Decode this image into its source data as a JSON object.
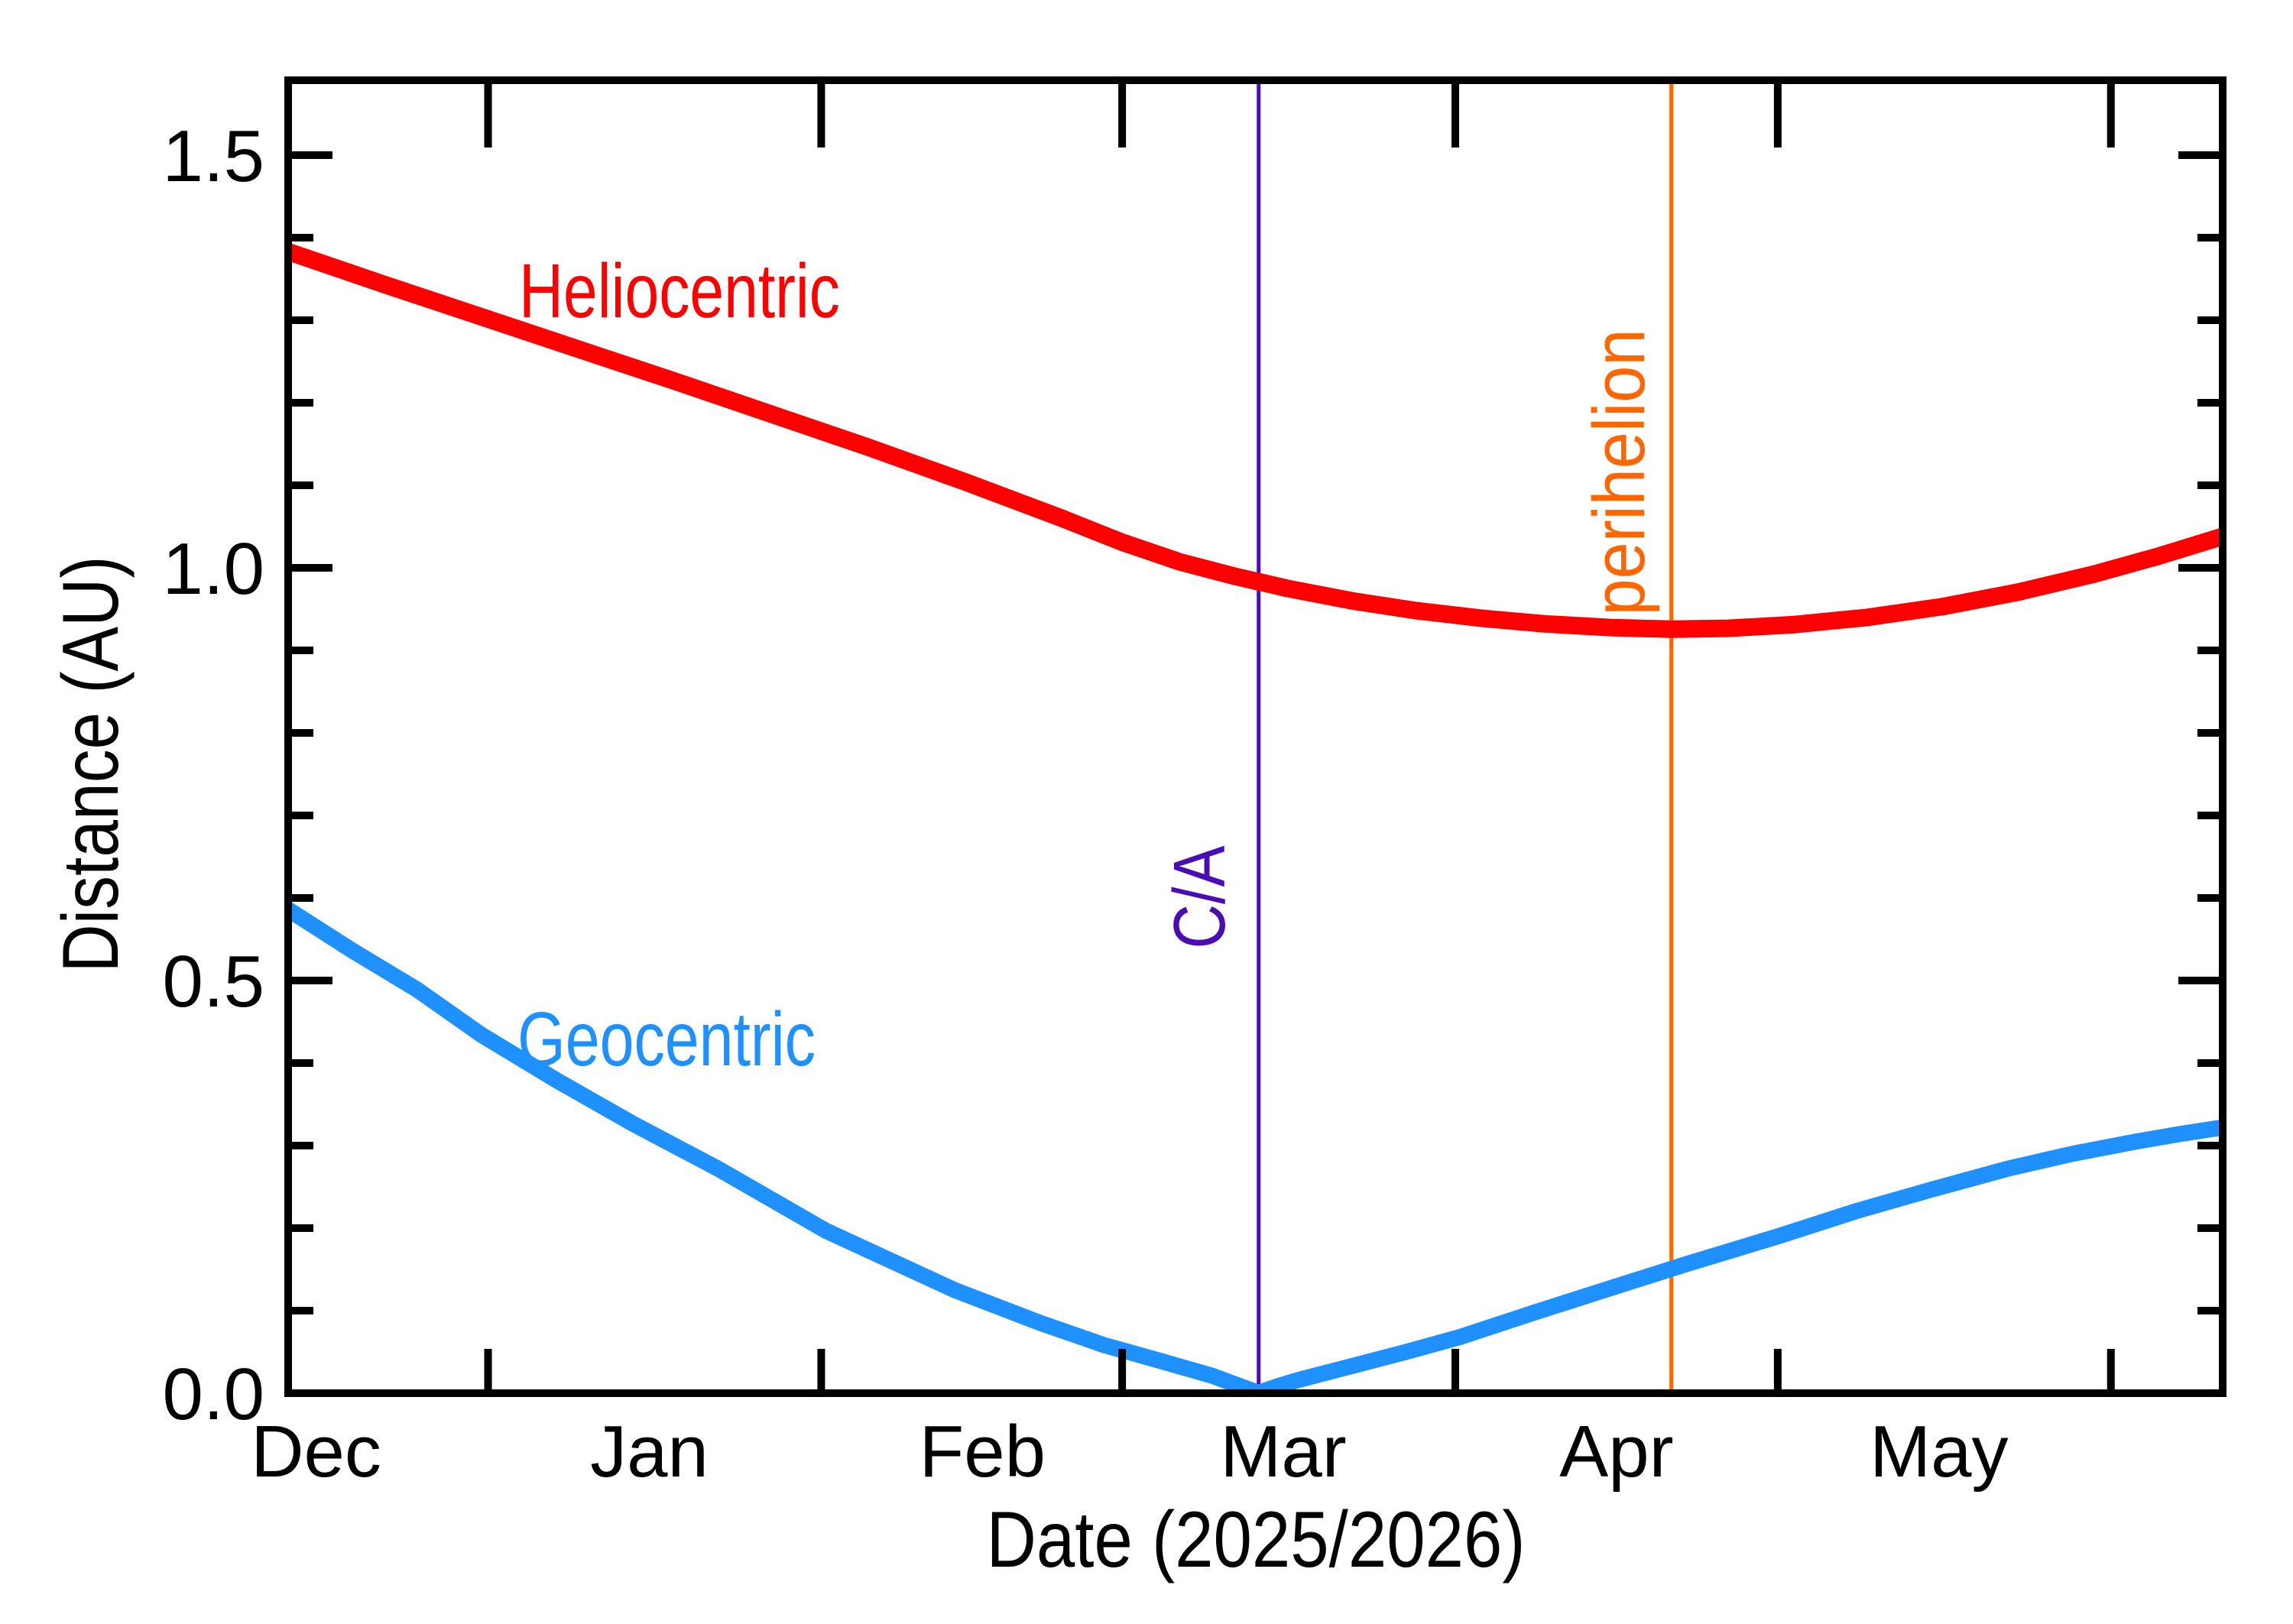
{
  "chart_data": {
    "type": "line",
    "title": "",
    "xlabel": "Date (2025/2026)",
    "ylabel": "Distance (AU)",
    "x_axis": {
      "label": "Date (2025/2026)",
      "unit": "days from axis start (approx Dec 13, 2025)",
      "day_span": 180,
      "month_ticks_days": [
        18.6,
        49.6,
        77.6,
        108.6,
        138.6,
        169.6
      ],
      "month_labels": [
        {
          "text": "Dec",
          "day": 2.6
        },
        {
          "text": "Jan",
          "day": 33.6
        },
        {
          "text": "Feb",
          "day": 64.6
        },
        {
          "text": "Mar",
          "day": 92.6
        },
        {
          "text": "Apr",
          "day": 123.6
        },
        {
          "text": "May",
          "day": 153.6
        }
      ]
    },
    "y_axis": {
      "label": "Distance (AU)",
      "min": 0.0,
      "max": 1.5907,
      "major_ticks": [
        {
          "value": 0.0,
          "text": "0.0"
        },
        {
          "value": 0.5,
          "text": "0.5"
        },
        {
          "value": 1.0,
          "text": "1.0"
        },
        {
          "value": 1.5,
          "text": "1.5"
        }
      ],
      "minor_tick_step": 0.1,
      "grid": false
    },
    "series": [
      {
        "name": "Heliocentric",
        "color": "#ff0000",
        "points": [
          [
            0,
            1.383
          ],
          [
            9,
            1.343
          ],
          [
            18,
            1.304
          ],
          [
            27,
            1.265
          ],
          [
            36,
            1.226
          ],
          [
            45,
            1.186
          ],
          [
            54,
            1.146
          ],
          [
            63,
            1.104
          ],
          [
            72,
            1.06
          ],
          [
            77.6,
            1.031
          ],
          [
            83,
            1.007
          ],
          [
            88,
            0.99
          ],
          [
            93,
            0.975
          ],
          [
            99,
            0.96
          ],
          [
            105,
            0.948
          ],
          [
            111,
            0.939
          ],
          [
            117,
            0.932
          ],
          [
            123,
            0.9277
          ],
          [
            128.7,
            0.9256
          ],
          [
            134,
            0.9267
          ],
          [
            140,
            0.9311
          ],
          [
            147,
            0.94
          ],
          [
            154,
            0.9531
          ],
          [
            161,
            0.9706
          ],
          [
            168,
            0.9923
          ],
          [
            174,
            1.014
          ],
          [
            180,
            1.038
          ]
        ]
      },
      {
        "name": "Geocentric",
        "color": "#1e90ff",
        "points": [
          [
            0,
            0.586
          ],
          [
            6,
            0.536
          ],
          [
            12,
            0.489
          ],
          [
            18,
            0.434
          ],
          [
            25,
            0.379
          ],
          [
            32,
            0.327
          ],
          [
            40,
            0.272
          ],
          [
            50,
            0.197
          ],
          [
            62,
            0.125
          ],
          [
            70,
            0.085
          ],
          [
            76,
            0.058
          ],
          [
            82,
            0.036
          ],
          [
            86,
            0.021
          ],
          [
            88.5,
            0.009
          ],
          [
            90.3,
            0.0005
          ],
          [
            92.2,
            0.009
          ],
          [
            94,
            0.016
          ],
          [
            99,
            0.033
          ],
          [
            104,
            0.05
          ],
          [
            109,
            0.068
          ],
          [
            116,
            0.098
          ],
          [
            123,
            0.127
          ],
          [
            130,
            0.156
          ],
          [
            138.6,
            0.19
          ],
          [
            146,
            0.221
          ],
          [
            153,
            0.247
          ],
          [
            160,
            0.272
          ],
          [
            166,
            0.29
          ],
          [
            172,
            0.305
          ],
          [
            176,
            0.314
          ],
          [
            180,
            0.322
          ]
        ]
      }
    ],
    "events": [
      {
        "label": "C/A",
        "day": 90.3,
        "color": "#4a0db4"
      },
      {
        "label": "perihelion",
        "day": 128.7,
        "color": "#ff6600"
      }
    ],
    "legend_position": "labels-on-curves"
  }
}
